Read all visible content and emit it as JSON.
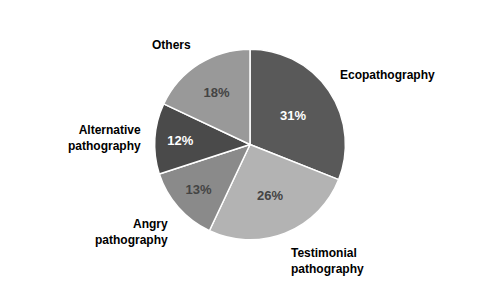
{
  "chart_data": {
    "type": "pie",
    "categories": [
      "Ecopathography",
      "Testimonial\npathography",
      "Angry\npathography",
      "Alternative\npathography",
      "Others"
    ],
    "values": [
      31,
      26,
      13,
      12,
      18
    ],
    "value_labels": [
      "31%",
      "26%",
      "13%",
      "12%",
      "18%"
    ],
    "colors": [
      "#595959",
      "#b3b3b3",
      "#8a8a8a",
      "#4a4a4a",
      "#999999"
    ],
    "data_labels": true,
    "legend": false
  }
}
